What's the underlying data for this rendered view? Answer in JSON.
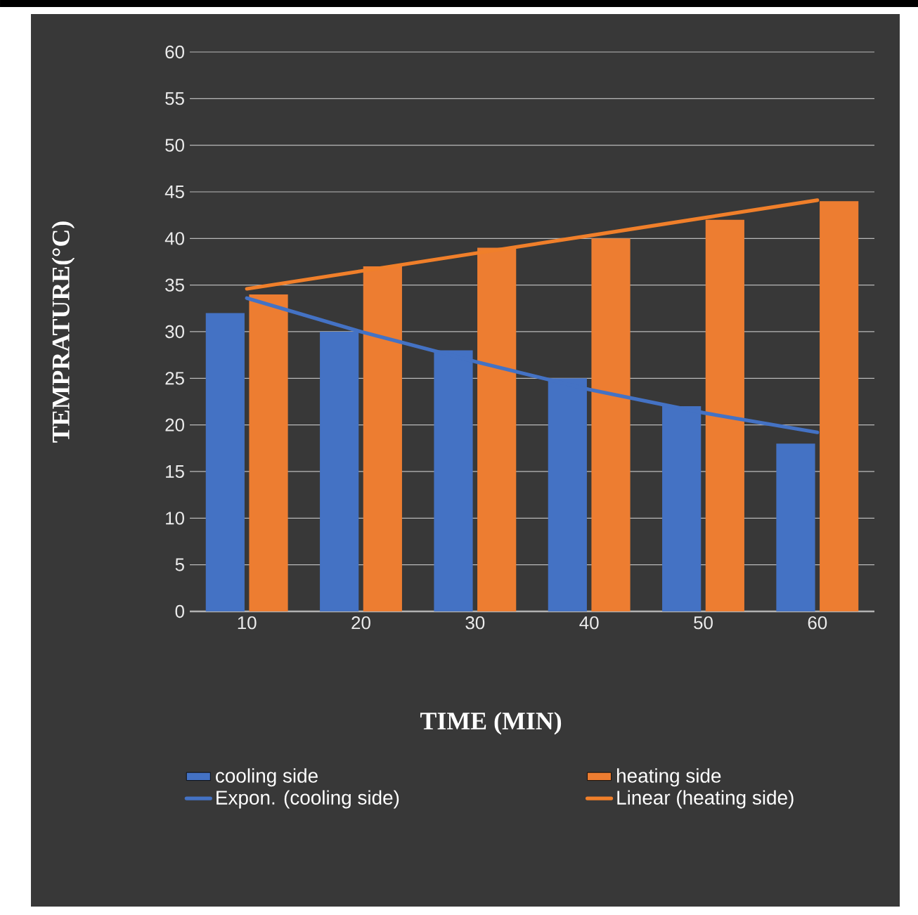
{
  "chart_data": {
    "type": "bar",
    "xlabel": "TIME (MIN)",
    "ylabel": "TEMPRATURE(°C)",
    "categories": [
      "10",
      "20",
      "30",
      "40",
      "50",
      "60"
    ],
    "series": [
      {
        "name": "cooling side",
        "color": "#4472c4",
        "values": [
          32,
          30,
          28,
          25,
          22,
          18
        ]
      },
      {
        "name": "heating side",
        "color": "#ed7d31",
        "values": [
          34,
          37,
          39,
          40,
          42,
          44
        ]
      },
      {
        "name": "Expon. (cooling side)",
        "type": "line",
        "color": "#4472c4",
        "values": [
          33.6,
          30,
          26.8,
          23.8,
          21.3,
          19.2
        ]
      },
      {
        "name": "Linear (heating side)",
        "type": "line",
        "color": "#f07f2a",
        "values": [
          34.6,
          36.5,
          38.4,
          40.3,
          42.2,
          44.1
        ]
      }
    ],
    "ylim": [
      0,
      60
    ],
    "yticks": [
      0,
      5,
      10,
      15,
      20,
      25,
      30,
      35,
      40,
      45,
      50,
      55,
      60
    ],
    "grid": "y",
    "legend": "bottom"
  }
}
